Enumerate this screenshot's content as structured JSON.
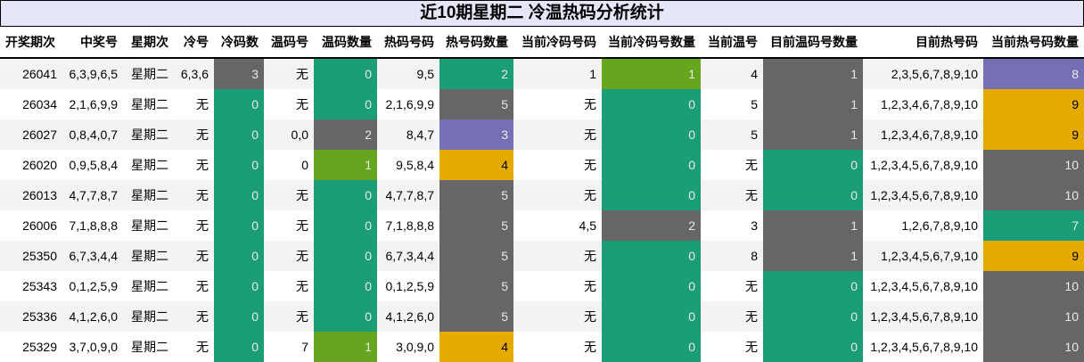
{
  "title": "近10期星期二 冷温热码分析统计",
  "colors": {
    "green": "#1b9e77",
    "gray": "#666666",
    "olive": "#66a61e",
    "purple": "#7570b3",
    "amber": "#e6ab02",
    "title_bg": "#e6e6fa"
  },
  "columns": [
    "开奖期次",
    "中奖号",
    "星期次",
    "冷号",
    "冷码数",
    "温码号",
    "温码数量",
    "热码号码",
    "热号码数量",
    "当前冷码号码",
    "当前冷码号数量",
    "当前温号",
    "目前温码号数量",
    "目前热号码",
    "当前热号码数量"
  ],
  "rows": [
    {
      "cells": [
        "26041",
        "6,3,9,6,5",
        "星期二",
        "6,3,6",
        "3",
        "无",
        "0",
        "9,5",
        "2",
        "1",
        "1",
        "4",
        "1",
        "2,3,5,6,7,8,9,10",
        "8"
      ],
      "colors": {
        "4": "gray",
        "6": "green",
        "8": "green",
        "10": "olive",
        "12": "gray",
        "14": "purple"
      }
    },
    {
      "cells": [
        "26034",
        "2,1,6,9,9",
        "星期二",
        "无",
        "0",
        "无",
        "0",
        "2,1,6,9,9",
        "5",
        "无",
        "0",
        "5",
        "1",
        "1,2,3,4,6,7,8,9,10",
        "9"
      ],
      "colors": {
        "4": "green",
        "6": "green",
        "8": "gray",
        "10": "green",
        "12": "gray",
        "14": "amber"
      }
    },
    {
      "cells": [
        "26027",
        "0,8,4,0,7",
        "星期二",
        "无",
        "0",
        "0,0",
        "2",
        "8,4,7",
        "3",
        "无",
        "0",
        "5",
        "1",
        "1,2,3,4,6,7,8,9,10",
        "9"
      ],
      "colors": {
        "4": "green",
        "6": "gray",
        "8": "purple",
        "10": "green",
        "12": "gray",
        "14": "amber"
      }
    },
    {
      "cells": [
        "26020",
        "0,9,5,8,4",
        "星期二",
        "无",
        "0",
        "0",
        "1",
        "9,5,8,4",
        "4",
        "无",
        "0",
        "无",
        "0",
        "1,2,3,4,5,6,7,8,9,10",
        "10"
      ],
      "colors": {
        "4": "green",
        "6": "olive",
        "8": "amber",
        "10": "green",
        "12": "green",
        "14": "gray"
      }
    },
    {
      "cells": [
        "26013",
        "4,7,7,8,7",
        "星期二",
        "无",
        "0",
        "无",
        "0",
        "4,7,7,8,7",
        "5",
        "无",
        "0",
        "无",
        "0",
        "1,2,3,4,5,6,7,8,9,10",
        "10"
      ],
      "colors": {
        "4": "green",
        "6": "green",
        "8": "gray",
        "10": "green",
        "12": "green",
        "14": "gray"
      }
    },
    {
      "cells": [
        "26006",
        "7,1,8,8,8",
        "星期二",
        "无",
        "0",
        "无",
        "0",
        "7,1,8,8,8",
        "5",
        "4,5",
        "2",
        "3",
        "1",
        "1,2,6,7,8,9,10",
        "7"
      ],
      "colors": {
        "4": "green",
        "6": "green",
        "8": "gray",
        "10": "gray",
        "12": "gray",
        "14": "green"
      }
    },
    {
      "cells": [
        "25350",
        "6,7,3,4,4",
        "星期二",
        "无",
        "0",
        "无",
        "0",
        "6,7,3,4,4",
        "5",
        "无",
        "0",
        "8",
        "1",
        "1,2,3,4,5,6,7,9,10",
        "9"
      ],
      "colors": {
        "4": "green",
        "6": "green",
        "8": "gray",
        "10": "green",
        "12": "gray",
        "14": "amber"
      }
    },
    {
      "cells": [
        "25343",
        "0,1,2,5,9",
        "星期二",
        "无",
        "0",
        "无",
        "0",
        "0,1,2,5,9",
        "5",
        "无",
        "0",
        "无",
        "0",
        "1,2,3,4,5,6,7,8,9,10",
        "10"
      ],
      "colors": {
        "4": "green",
        "6": "green",
        "8": "gray",
        "10": "green",
        "12": "green",
        "14": "gray"
      }
    },
    {
      "cells": [
        "25336",
        "4,1,2,6,0",
        "星期二",
        "无",
        "0",
        "无",
        "0",
        "4,1,2,6,0",
        "5",
        "无",
        "0",
        "无",
        "0",
        "1,2,3,4,5,6,7,8,9,10",
        "10"
      ],
      "colors": {
        "4": "green",
        "6": "green",
        "8": "gray",
        "10": "green",
        "12": "green",
        "14": "gray"
      }
    },
    {
      "cells": [
        "25329",
        "3,7,0,9,0",
        "星期二",
        "无",
        "0",
        "7",
        "1",
        "3,0,9,0",
        "4",
        "无",
        "0",
        "无",
        "0",
        "1,2,3,4,5,6,7,8,9,10",
        "10"
      ],
      "colors": {
        "4": "green",
        "6": "olive",
        "8": "amber",
        "10": "green",
        "12": "green",
        "14": "gray"
      }
    }
  ]
}
